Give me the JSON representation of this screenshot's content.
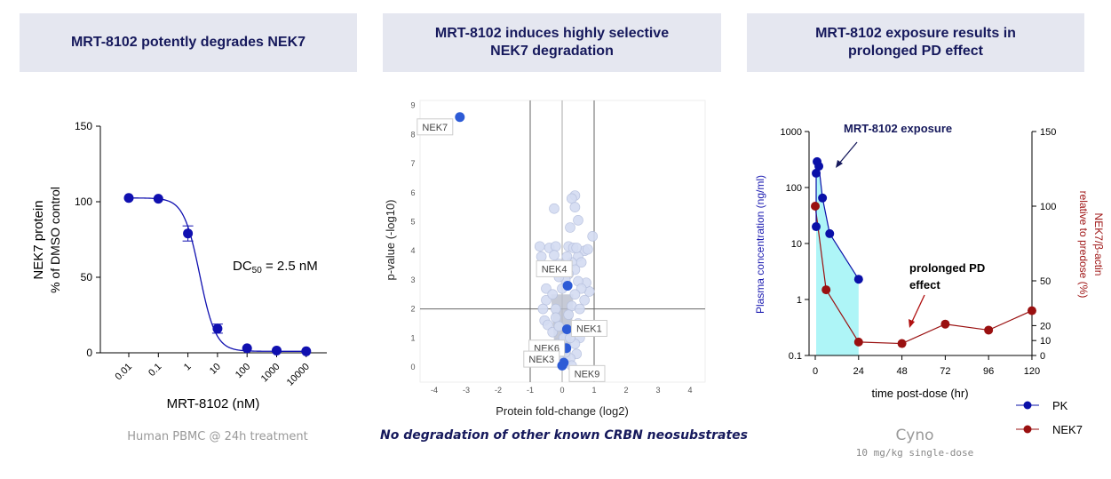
{
  "panels": [
    {
      "title": "MRT-8102 potently degrades NEK7",
      "caption": "Human PBMC @ 24h treatment"
    },
    {
      "title": "MRT-8102 induces highly selective NEK7 degradation",
      "caption": "No degradation of other known CRBN neosubstrates"
    },
    {
      "title": "MRT-8102 exposure results in prolonged PD effect",
      "caption": "Cyno",
      "subcaption": "10 mg/kg single-dose"
    }
  ],
  "chart_data": [
    {
      "type": "line",
      "title": "",
      "xlabel": "MRT-8102 (nM)",
      "ylabel": [
        "NEK7 protein",
        "% of DMSO control"
      ],
      "x_ticks": [
        "0.01",
        "0.1",
        "1",
        "10",
        "100",
        "1000",
        "10000"
      ],
      "y_ticks": [
        0,
        50,
        100,
        150
      ],
      "ylim": [
        0,
        150
      ],
      "xscale": "log",
      "x": [
        0.01,
        0.1,
        1,
        10,
        100,
        1000,
        10000
      ],
      "values": [
        102.5,
        102,
        79,
        16,
        3,
        1.5,
        1
      ],
      "errors": [
        0,
        0,
        5,
        3,
        0,
        0,
        0
      ],
      "annotation": "DC50 = 2.5 nM",
      "annotation_parts": {
        "pre": "DC",
        "sub": "50",
        "post": " = 2.5 nM"
      },
      "color": "#1010b0"
    },
    {
      "type": "scatter",
      "xlabel": "Protein fold-change (log2)",
      "ylabel": "p-value (-log10)",
      "xlim": [
        -4.5,
        4.5
      ],
      "ylim": [
        -0.5,
        9.2
      ],
      "x_ticks": [
        -4,
        -3,
        -2,
        -1,
        0,
        1,
        2,
        3,
        4
      ],
      "y_ticks": [
        0,
        1,
        2,
        3,
        4,
        5,
        6,
        7,
        8,
        9
      ],
      "vlines": [
        -1,
        0,
        1
      ],
      "hline": 2,
      "background_points": [
        [
          0.4,
          5.9
        ],
        [
          0.3,
          5.8
        ],
        [
          0.4,
          5.5
        ],
        [
          -0.25,
          5.45
        ],
        [
          0.5,
          5.05
        ],
        [
          0.25,
          4.8
        ],
        [
          0.95,
          4.5
        ],
        [
          0.85,
          2.6
        ],
        [
          0.75,
          2.9
        ],
        [
          -0.7,
          4.15
        ],
        [
          -0.4,
          4.1
        ],
        [
          -0.2,
          4.15
        ],
        [
          0.2,
          4.15
        ],
        [
          0.35,
          4.1
        ],
        [
          0.7,
          4.0
        ],
        [
          0.8,
          4.05
        ],
        [
          -0.65,
          3.8
        ],
        [
          -0.25,
          3.85
        ],
        [
          0.5,
          3.8
        ],
        [
          0.6,
          3.6
        ],
        [
          0.3,
          3.6
        ],
        [
          -0.1,
          3.55
        ],
        [
          0.4,
          3.35
        ],
        [
          0.2,
          3.2
        ],
        [
          -0.35,
          3.3
        ],
        [
          0.1,
          3.0
        ],
        [
          0.5,
          2.95
        ],
        [
          -0.5,
          2.7
        ],
        [
          0.6,
          2.7
        ],
        [
          -0.5,
          2.3
        ],
        [
          0.7,
          2.3
        ],
        [
          -0.3,
          2.5
        ],
        [
          0.4,
          2.5
        ],
        [
          -0.2,
          2.0
        ],
        [
          0.3,
          2.1
        ],
        [
          -0.55,
          1.6
        ],
        [
          -0.45,
          1.45
        ],
        [
          0.5,
          1.5
        ],
        [
          0.55,
          1.0
        ],
        [
          -0.3,
          1.2
        ],
        [
          0.35,
          1.2
        ],
        [
          -0.15,
          0.8
        ],
        [
          0.4,
          0.8
        ],
        [
          0.45,
          0.45
        ],
        [
          -0.1,
          0.4
        ],
        [
          0.25,
          0.3
        ],
        [
          0.3,
          0.05
        ],
        [
          -0.05,
          0.2
        ],
        [
          0.1,
          0.5
        ],
        [
          -0.2,
          1.7
        ],
        [
          0.2,
          1.8
        ],
        [
          0.0,
          2.7
        ],
        [
          -0.1,
          3.1
        ],
        [
          0.15,
          3.8
        ],
        [
          0.45,
          4.1
        ],
        [
          -0.6,
          2.0
        ],
        [
          0.55,
          2.0
        ],
        [
          0.05,
          1.0
        ],
        [
          -0.1,
          1.4
        ],
        [
          0.25,
          1.0
        ]
      ],
      "labeled_points": [
        {
          "label": "NEK7",
          "x": -3.2,
          "y": 8.6
        },
        {
          "label": "NEK4",
          "x": 0.17,
          "y": 2.8
        },
        {
          "label": "NEK1",
          "x": 0.15,
          "y": 1.3
        },
        {
          "label": "NEK6",
          "x": 0.13,
          "y": 0.65
        },
        {
          "label": "NEK3",
          "x": 0.05,
          "y": 0.15
        },
        {
          "label": "NEK9",
          "x": 0.0,
          "y": 0.05
        }
      ],
      "point_color": "#d4dcf2",
      "highlight_color": "#2d5bd6"
    },
    {
      "type": "line",
      "xlabel": "time post-dose (hr)",
      "ylabel": "Plasma concentration (ng/ml)",
      "y2label": [
        "NEK7/β-actin",
        "relative to predose (%)"
      ],
      "x_ticks": [
        0,
        24,
        48,
        72,
        96,
        120
      ],
      "y_ticks": [
        "0.1",
        "1",
        "10",
        "100",
        "1000"
      ],
      "y2_ticks": [
        0,
        10,
        20,
        50,
        100,
        150
      ],
      "xlim": [
        0,
        120
      ],
      "ylim": [
        0.1,
        1000
      ],
      "y2lim": [
        0,
        150
      ],
      "series": [
        {
          "name": "PK",
          "axis": "left",
          "color": "#0a10a8",
          "x": [
            0.5,
            0.5,
            1,
            2,
            4,
            8,
            24
          ],
          "y": [
            20,
            180,
            290,
            240,
            65,
            15,
            2.3
          ]
        },
        {
          "name": "NEK7",
          "axis": "right",
          "color": "#9a1010",
          "x": [
            0,
            6,
            24,
            48,
            72,
            96,
            120
          ],
          "y": [
            100,
            44,
            9,
            8,
            21,
            17,
            30
          ]
        }
      ],
      "annotations": [
        "MRT-8102 exposure",
        "prolonged PD",
        "effect"
      ],
      "shade_color": "#aef5f7"
    }
  ]
}
